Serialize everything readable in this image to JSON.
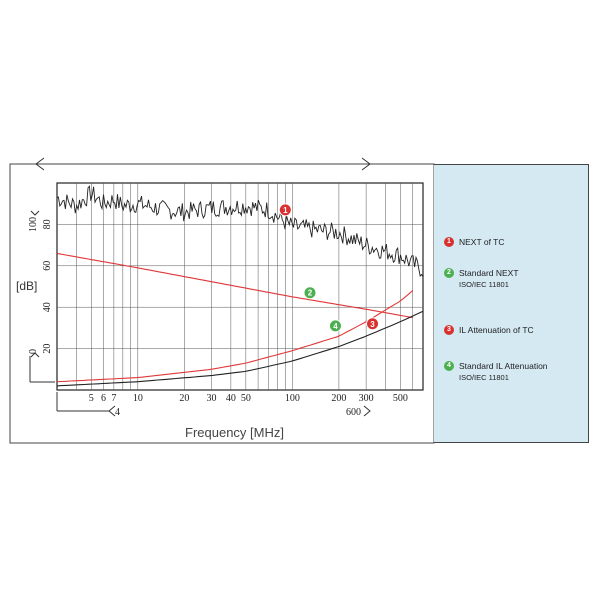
{
  "chart_data": {
    "type": "line",
    "xscale": "log",
    "xlim": [
      3,
      700
    ],
    "ylim": [
      0,
      100
    ],
    "xlabel": "Frequency [MHz]",
    "ylabel": "[dB]",
    "x_ticks": [
      {
        "v": 5,
        "label": "5"
      },
      {
        "v": 6,
        "label": "6"
      },
      {
        "v": 7,
        "label": "7"
      },
      {
        "v": 10,
        "label": "10"
      },
      {
        "v": 20,
        "label": "20"
      },
      {
        "v": 30,
        "label": "30"
      },
      {
        "v": 40,
        "label": "40"
      },
      {
        "v": 50,
        "label": "50"
      },
      {
        "v": 100,
        "label": "100"
      },
      {
        "v": 200,
        "label": "200"
      },
      {
        "v": 300,
        "label": "300"
      },
      {
        "v": 500,
        "label": "500"
      }
    ],
    "y_ticks": [
      {
        "v": 20,
        "label": "20"
      },
      {
        "v": 40,
        "label": "40"
      },
      {
        "v": 60,
        "label": "60"
      },
      {
        "v": 80,
        "label": "80"
      }
    ],
    "range_marks": {
      "y_top": "100",
      "y_bottom": "0",
      "x_left": "4",
      "x_right": "600"
    },
    "series": [
      {
        "name": "NEXT of TC",
        "badge": "1",
        "color": "#222222",
        "noisy": true,
        "x": [
          3,
          4,
          5,
          6,
          7,
          8,
          10,
          15,
          20,
          30,
          50,
          70,
          90,
          100,
          150,
          200,
          300,
          400,
          500,
          600,
          700
        ],
        "y": [
          93,
          89,
          95,
          90,
          92,
          89,
          90,
          87,
          86,
          88,
          89,
          87,
          81,
          79,
          77,
          76,
          70,
          67,
          65,
          61,
          58
        ]
      },
      {
        "name": "Standard NEXT",
        "sub": "ISO/IEC 11801",
        "badge": "2",
        "color": "#e0383a",
        "x": [
          3,
          10,
          100,
          300,
          600
        ],
        "y": [
          66,
          59,
          45,
          39,
          35
        ]
      },
      {
        "name": "IL Attenuation of TC",
        "badge": "3",
        "color": "#222222",
        "x": [
          3,
          10,
          30,
          50,
          100,
          200,
          300,
          500,
          700
        ],
        "y": [
          2,
          4,
          7,
          9,
          14,
          21,
          26,
          33,
          38
        ]
      },
      {
        "name": "Standard IL Attenuation",
        "sub": "ISO/IEC 11801",
        "badge": "4",
        "color": "#e0383a",
        "x": [
          3,
          10,
          30,
          50,
          100,
          200,
          300,
          500,
          600
        ],
        "y": [
          4,
          6,
          10,
          13,
          19,
          26,
          33,
          43,
          48
        ]
      }
    ],
    "markers": [
      {
        "badge": "1",
        "color": "#d8312f",
        "x": 90,
        "y": 87
      },
      {
        "badge": "2",
        "color": "#4caf50",
        "x": 130,
        "y": 47
      },
      {
        "badge": "3",
        "color": "#d8312f",
        "x": 330,
        "y": 32
      },
      {
        "badge": "4",
        "color": "#4caf50",
        "x": 190,
        "y": 31
      }
    ],
    "legend_position": "right",
    "grid": true
  }
}
